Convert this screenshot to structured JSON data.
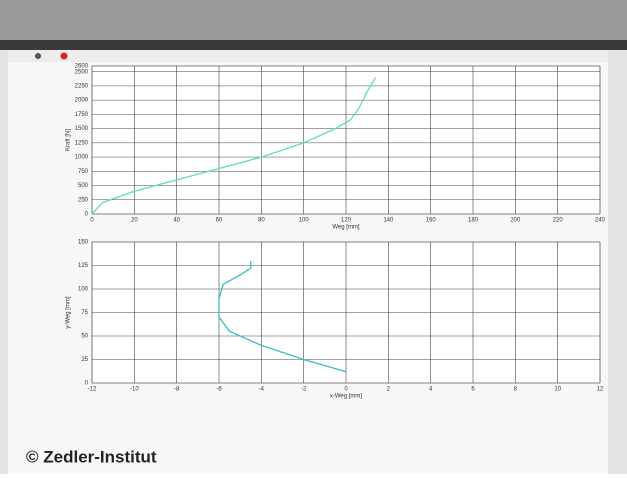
{
  "chart_data": [
    {
      "type": "line",
      "xlabel": "Weg [mm]",
      "ylabel": "Kraft [N]",
      "xlim": [
        0,
        240
      ],
      "xticks": [
        0,
        20,
        40,
        60,
        80,
        100,
        120,
        140,
        160,
        180,
        200,
        220,
        240
      ],
      "ylim": [
        0,
        2600
      ],
      "yticks": [
        0,
        250,
        500,
        750,
        1000,
        1250,
        1500,
        1750,
        2000,
        2250,
        2500,
        2600
      ],
      "grid": true,
      "series": [
        {
          "color": "#5fe0b0",
          "x": [
            0,
            5,
            20,
            40,
            60,
            80,
            100,
            115,
            122,
            126,
            130,
            134
          ],
          "values": [
            0,
            200,
            400,
            600,
            800,
            1000,
            1250,
            1500,
            1650,
            1850,
            2150,
            2400
          ]
        }
      ]
    },
    {
      "type": "line",
      "xlabel": "x-Weg [mm]",
      "ylabel": "y-Weg [mm]",
      "xlim": [
        -12,
        12
      ],
      "xticks": [
        -12,
        -10,
        -8,
        -6,
        -4,
        -2,
        0,
        2,
        4,
        6,
        8,
        10,
        12
      ],
      "ylim": [
        0,
        150
      ],
      "yticks": [
        0,
        25,
        50,
        75,
        100,
        125,
        150
      ],
      "grid": true,
      "series": [
        {
          "color": "#3cbcc4",
          "x": [
            0,
            -2,
            -4,
            -5.5,
            -6,
            -6,
            -5.8,
            -5,
            -4.5,
            -4.5
          ],
          "values": [
            12,
            25,
            40,
            55,
            70,
            90,
            105,
            115,
            122,
            130
          ]
        }
      ]
    }
  ],
  "credit": "© Zedler-Institut"
}
